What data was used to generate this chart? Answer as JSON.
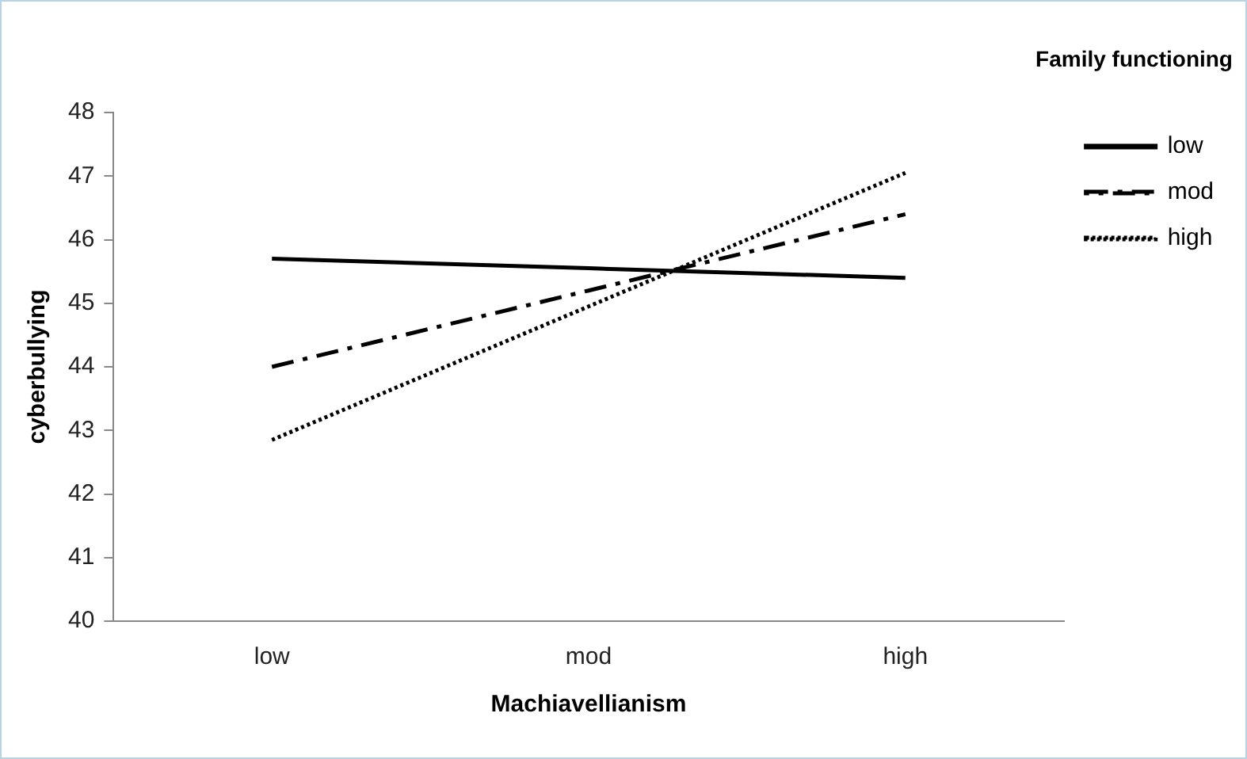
{
  "chart_data": {
    "type": "line",
    "xlabel": "Machiavellianism",
    "ylabel": "cyberbullying",
    "legend_title": "Family functioning",
    "categories": [
      "low",
      "mod",
      "high"
    ],
    "series": [
      {
        "name": "low",
        "color": "#000000",
        "line_style": "solid",
        "values": [
          45.7,
          45.55,
          45.4
        ]
      },
      {
        "name": "mod",
        "color": "#000000",
        "line_style": "dashed",
        "values": [
          44.0,
          45.2,
          46.4
        ]
      },
      {
        "name": "high",
        "color": "#000000",
        "line_style": "dotted",
        "values": [
          42.85,
          44.95,
          47.05
        ]
      }
    ],
    "ylim": [
      40,
      48
    ],
    "yticks": [
      40,
      41,
      42,
      43,
      44,
      45,
      46,
      47,
      48
    ],
    "grid": false,
    "legend": "right",
    "marker": "none"
  }
}
